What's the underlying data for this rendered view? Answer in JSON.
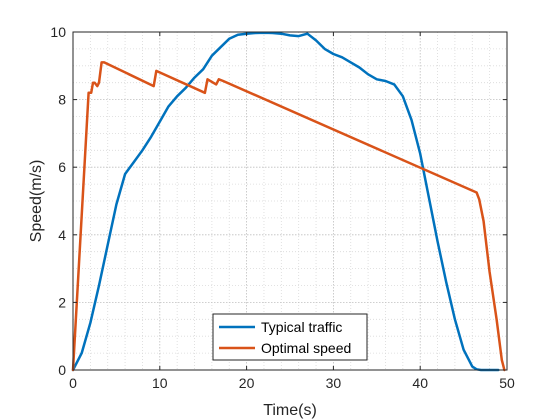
{
  "chart_data": {
    "type": "line",
    "xlabel": "Time(s)",
    "ylabel": "Speed(m/s)",
    "xlim": [
      0,
      50
    ],
    "ylim": [
      0,
      10
    ],
    "xticks": [
      "0",
      "10",
      "20",
      "30",
      "40",
      "50"
    ],
    "yticks": [
      "0",
      "2",
      "4",
      "6",
      "8",
      "10"
    ],
    "grid": true,
    "minor_grid": true,
    "legend_position": "bottom-center",
    "series": [
      {
        "name": "Typical traffic",
        "color": "#0072BD",
        "x": [
          0,
          1,
          2,
          3,
          4,
          5,
          6,
          7,
          8,
          9,
          10,
          11,
          12,
          13,
          14,
          15,
          16,
          17,
          18,
          19,
          20,
          21,
          22,
          23,
          24,
          25,
          26,
          27,
          28,
          29,
          30,
          31,
          32,
          33,
          34,
          35,
          36,
          37,
          38,
          39,
          40,
          41,
          42,
          43,
          44,
          45,
          46,
          46.5,
          47,
          47.5,
          48,
          49
        ],
        "y": [
          0,
          0.5,
          1.4,
          2.5,
          3.7,
          4.9,
          5.8,
          6.15,
          6.5,
          6.9,
          7.35,
          7.8,
          8.1,
          8.35,
          8.65,
          8.9,
          9.3,
          9.55,
          9.8,
          9.92,
          9.95,
          9.97,
          9.98,
          9.97,
          9.95,
          9.9,
          9.88,
          9.95,
          9.75,
          9.5,
          9.35,
          9.25,
          9.1,
          8.95,
          8.75,
          8.6,
          8.55,
          8.45,
          8.1,
          7.4,
          6.4,
          5.1,
          3.8,
          2.6,
          1.5,
          0.6,
          0.1,
          0.02,
          0,
          0,
          0,
          0
        ]
      },
      {
        "name": "Optimal speed",
        "color": "#D95319",
        "x": [
          0,
          1.8,
          2.1,
          2.3,
          2.5,
          2.8,
          3.0,
          3.3,
          3.6,
          9.3,
          9.6,
          15.2,
          15.5,
          16.5,
          16.8,
          17.3,
          46.5,
          46.8,
          47.3,
          48.0,
          48.8,
          49.4,
          49.7
        ],
        "y": [
          0,
          8.2,
          8.2,
          8.5,
          8.5,
          8.4,
          8.5,
          9.1,
          9.1,
          8.4,
          8.85,
          8.2,
          8.6,
          8.45,
          8.6,
          8.55,
          5.25,
          5.05,
          4.4,
          2.9,
          1.5,
          0.3,
          0
        ]
      }
    ]
  }
}
